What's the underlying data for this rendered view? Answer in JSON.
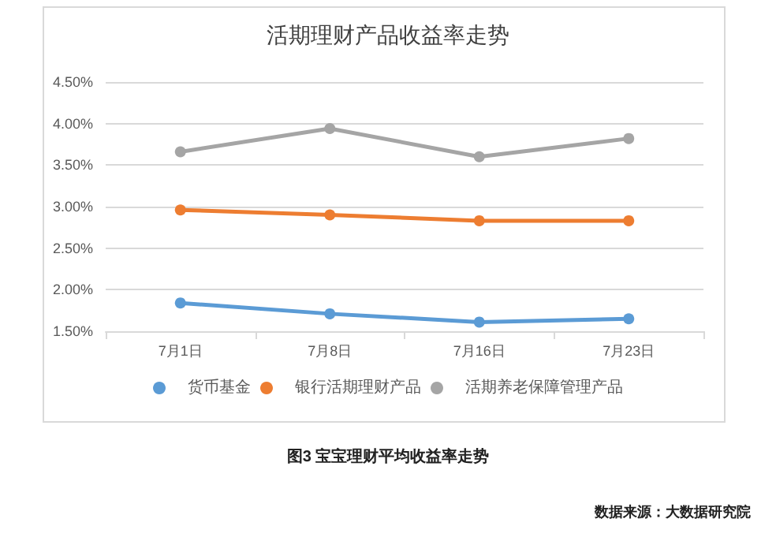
{
  "chart_data": {
    "type": "line",
    "title": "活期理财产品收益率走势",
    "categories": [
      "7月1日",
      "7月8日",
      "7月16日",
      "7月23日"
    ],
    "series": [
      {
        "name": "货币基金",
        "color": "#5b9bd5",
        "values": [
          1.84,
          1.71,
          1.61,
          1.65
        ]
      },
      {
        "name": "银行活期理财产品",
        "color": "#ed7d31",
        "values": [
          2.96,
          2.9,
          2.83,
          2.83
        ]
      },
      {
        "name": "活期养老保障管理产品",
        "color": "#a5a5a5",
        "values": [
          3.66,
          3.94,
          3.6,
          3.82
        ]
      }
    ],
    "ylim": [
      1.5,
      4.5
    ],
    "yticks": [
      {
        "value": 1.5,
        "label": "1.50%"
      },
      {
        "value": 2,
        "label": "2.00%"
      },
      {
        "value": 2.5,
        "label": "2.50%"
      },
      {
        "value": 3,
        "label": "3.00%"
      },
      {
        "value": 3.5,
        "label": "3.50%"
      },
      {
        "value": 4,
        "label": "4.00%"
      },
      {
        "value": 4.5,
        "label": "4.50%"
      }
    ],
    "grid": "y",
    "legend": "bottom",
    "marker": "circle",
    "line_style": "solid",
    "annotations": [
      "图3 宝宝理财平均收益率走势",
      "数据来源：大数据研究院"
    ]
  }
}
